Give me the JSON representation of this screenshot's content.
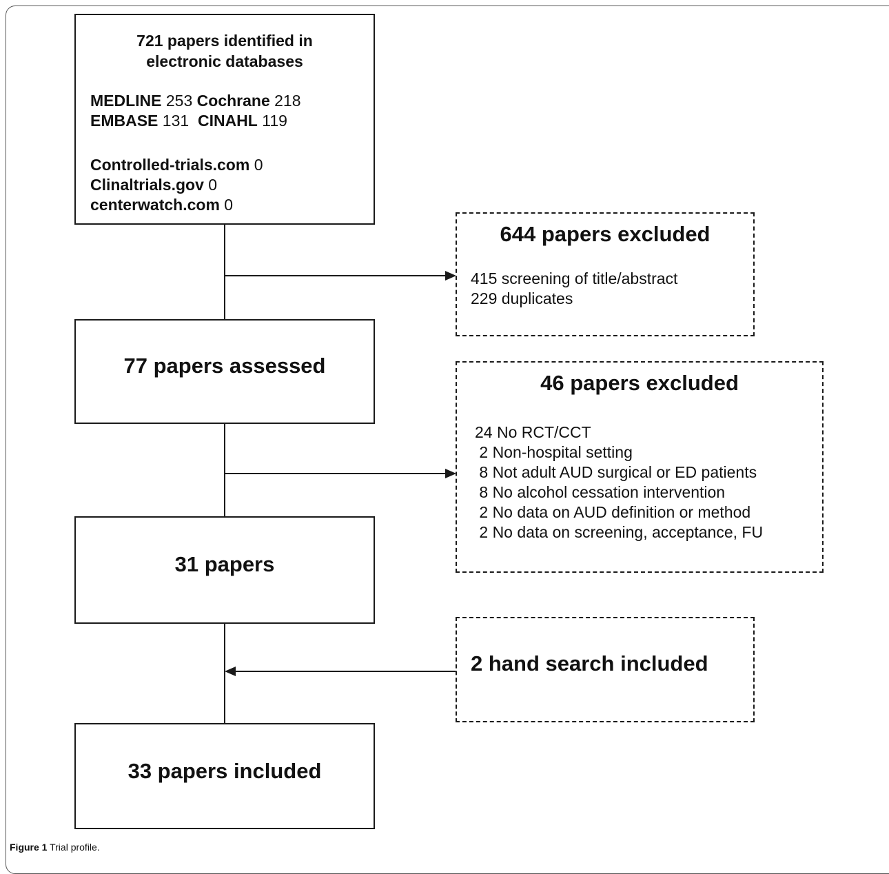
{
  "box1": {
    "title_line1": "721 papers identified in",
    "title_line2": "electronic databases",
    "db_row1": [
      {
        "name": "MEDLINE",
        "count": "253"
      },
      {
        "name": "Cochrane",
        "count": "218"
      }
    ],
    "db_row2": [
      {
        "name": "EMBASE",
        "count": "131"
      },
      {
        "name": "CINAHL",
        "count": "119"
      }
    ],
    "registries": [
      {
        "name": "Controlled-trials.com",
        "count": "0"
      },
      {
        "name": "Clinaltrials.gov",
        "count": "0"
      },
      {
        "name": "centerwatch.com",
        "count": "0"
      }
    ]
  },
  "excluded1": {
    "title": "644 papers excluded",
    "items": [
      "415 screening of title/abstract",
      "229 duplicates"
    ]
  },
  "box2": {
    "title": "77 papers assessed"
  },
  "excluded2": {
    "title": "46 papers excluded",
    "items": [
      "24 No RCT/CCT",
      " 2 Non-hospital setting",
      " 8 Not adult AUD surgical or ED patients",
      " 8 No alcohol cessation intervention",
      " 2 No data on AUD definition or method",
      " 2 No data on screening, acceptance, FU"
    ]
  },
  "box3": {
    "title": "31 papers"
  },
  "hand_search": {
    "title": "2 hand search included"
  },
  "box4": {
    "title": "33 papers included"
  },
  "caption": {
    "label": "Figure 1",
    "text": " Trial profile."
  }
}
